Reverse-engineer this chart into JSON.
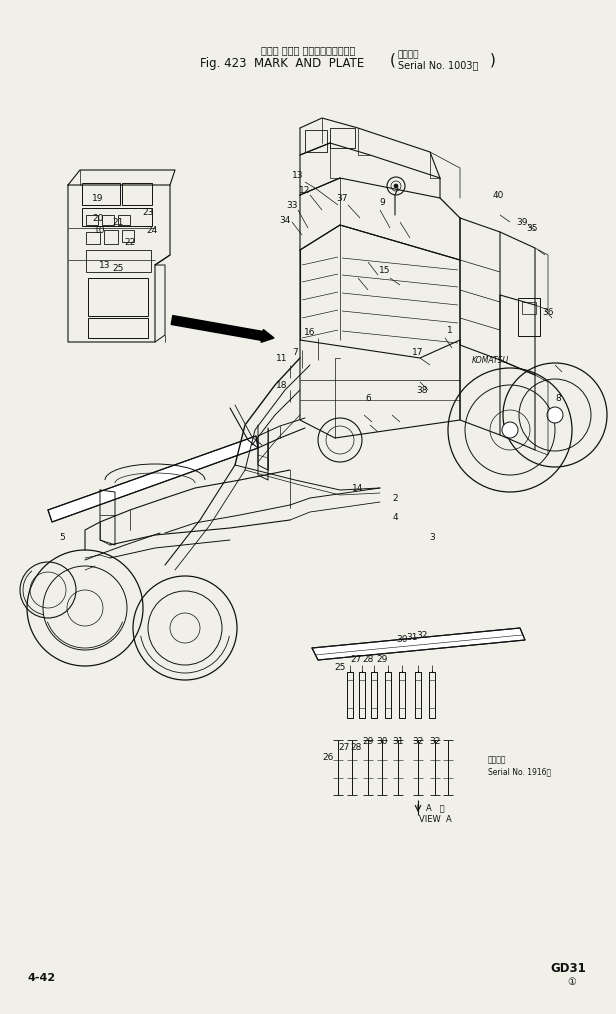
{
  "title_jp": "マーク および プレート（適用号機",
  "title_en": "Fig. 423  MARK  AND  PLATE",
  "title_paren": "( Serial No. 1003～ )",
  "page_left": "4-42",
  "page_right_top": "GD31",
  "page_right_bot": "①",
  "bg": "#f0f0e8",
  "fg": "#111111",
  "serial_note1": "適用号機",
  "serial_note2": "Serial No. 1916～",
  "view_a": "A   視",
  "view_a2": "VIEW  A"
}
